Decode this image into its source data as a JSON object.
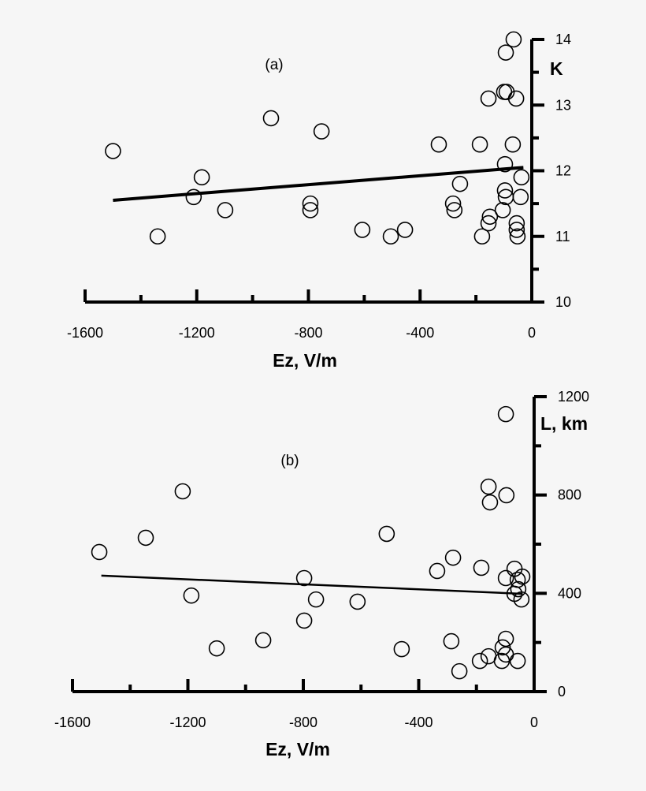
{
  "chart_data": [
    {
      "type": "scatter",
      "panel_label": "(a)",
      "xlabel": "Ez, V/m",
      "ylabel": "K",
      "xlim": [
        -1600,
        0
      ],
      "ylim": [
        10,
        14
      ],
      "xticks": [
        "-1600",
        "-1200",
        "-800",
        "-400",
        "0"
      ],
      "yticks": [
        "10",
        "11",
        "12",
        "13",
        "14"
      ],
      "points": [
        [
          -1500,
          12.3
        ],
        [
          -1340,
          11.0
        ],
        [
          -1211,
          11.6
        ],
        [
          -1182,
          11.9
        ],
        [
          -1098,
          11.4
        ],
        [
          -934,
          12.8
        ],
        [
          -753,
          12.6
        ],
        [
          -793,
          11.5
        ],
        [
          -793,
          11.4
        ],
        [
          -607,
          11.1
        ],
        [
          -505,
          11.0
        ],
        [
          -454,
          11.1
        ],
        [
          -333,
          12.4
        ],
        [
          -257,
          11.8
        ],
        [
          -282,
          11.5
        ],
        [
          -277,
          11.4
        ],
        [
          -186,
          12.4
        ],
        [
          -178,
          11.0
        ],
        [
          -155,
          13.1
        ],
        [
          -150,
          11.3
        ],
        [
          -155,
          11.2
        ],
        [
          -99,
          13.2
        ],
        [
          -90,
          13.2
        ],
        [
          -93,
          13.8
        ],
        [
          -65,
          14.0
        ],
        [
          -56,
          13.1
        ],
        [
          -68,
          12.4
        ],
        [
          -96,
          12.1
        ],
        [
          -96,
          11.7
        ],
        [
          -93,
          11.6
        ],
        [
          -104,
          11.4
        ],
        [
          -37,
          11.9
        ],
        [
          -40,
          11.6
        ],
        [
          -54,
          11.2
        ],
        [
          -54,
          11.1
        ],
        [
          -51,
          11.0
        ]
      ],
      "fit_line": [
        [
          -1500,
          11.55
        ],
        [
          -30,
          12.05
        ]
      ]
    },
    {
      "type": "scatter",
      "panel_label": "(b)",
      "xlabel": "Ez, V/m",
      "ylabel": "L, km",
      "xlim": [
        -1600,
        0
      ],
      "ylim": [
        0,
        1200
      ],
      "xticks": [
        "-1600",
        "-1200",
        "-800",
        "-400",
        "0"
      ],
      "yticks": [
        "0",
        "400",
        "800",
        "1200"
      ],
      "points": [
        [
          -1507,
          568
        ],
        [
          -1346,
          626
        ],
        [
          -1218,
          815
        ],
        [
          -1188,
          391
        ],
        [
          -1100,
          176
        ],
        [
          -939,
          209
        ],
        [
          -797,
          462
        ],
        [
          -797,
          289
        ],
        [
          -756,
          375
        ],
        [
          -612,
          366
        ],
        [
          -511,
          642
        ],
        [
          -459,
          173
        ],
        [
          -336,
          491
        ],
        [
          -281,
          545
        ],
        [
          -287,
          205
        ],
        [
          -259,
          83
        ],
        [
          -188,
          125
        ],
        [
          -158,
          144
        ],
        [
          -112,
          125
        ],
        [
          -98,
          151
        ],
        [
          -109,
          180
        ],
        [
          -98,
          215
        ],
        [
          -57,
          125
        ],
        [
          -158,
          834
        ],
        [
          -153,
          770
        ],
        [
          -96,
          799
        ],
        [
          -98,
          1129
        ],
        [
          -183,
          504
        ],
        [
          -68,
          500
        ],
        [
          -98,
          462
        ],
        [
          -41,
          468
        ],
        [
          -57,
          455
        ],
        [
          -55,
          417
        ],
        [
          -68,
          398
        ],
        [
          -44,
          375
        ]
      ],
      "fit_line": [
        [
          -1500,
          472
        ],
        [
          -40,
          398
        ]
      ]
    }
  ]
}
